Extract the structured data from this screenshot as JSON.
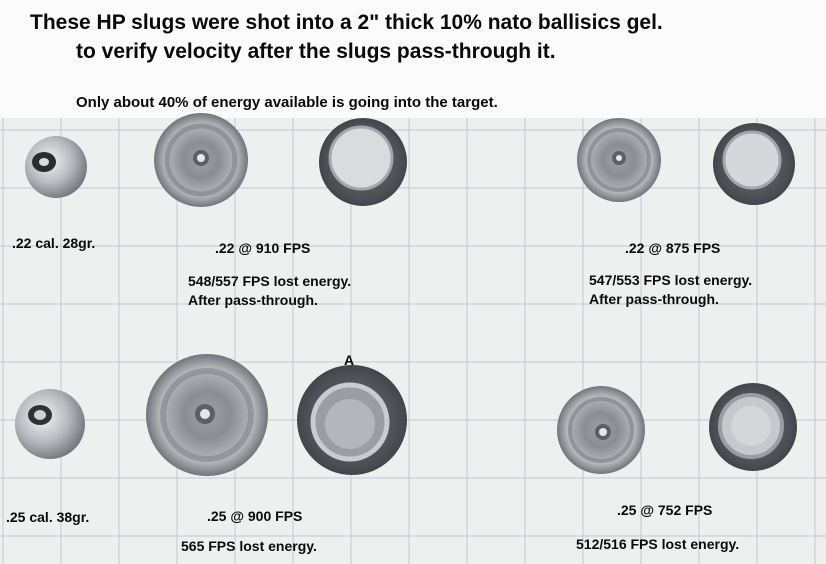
{
  "header": {
    "line1": "These HP slugs were shot into a 2\" thick 10% nato ballisics gel.",
    "line2": "to verify velocity after the slugs pass-through it.",
    "note": "Only about 40% of energy available is going into the target."
  },
  "row1": {
    "ref_label": ".22 cal. 28gr.",
    "group_a": {
      "speed": ".22 @ 910 FPS",
      "lost": "548/557 FPS lost energy.",
      "after": "After pass-through."
    },
    "group_b": {
      "speed": ".22 @ 875 FPS",
      "lost": "547/553 FPS lost energy.",
      "after": "After pass-through."
    }
  },
  "row2": {
    "ref_label": ".25 cal. 38gr.",
    "marker": "A",
    "group_a": {
      "speed": ".25 @ 900 FPS",
      "lost": "565 FPS lost energy."
    },
    "group_b": {
      "speed": ".25 @ 752 FPS",
      "lost": "512/516 FPS lost energy."
    }
  },
  "colors": {
    "background": "#eef0f0",
    "grid_line": "#c4c8cc",
    "lead_dark": "#3d4148",
    "lead_light": "#b9bcc0",
    "text": "#0a0a0a"
  }
}
